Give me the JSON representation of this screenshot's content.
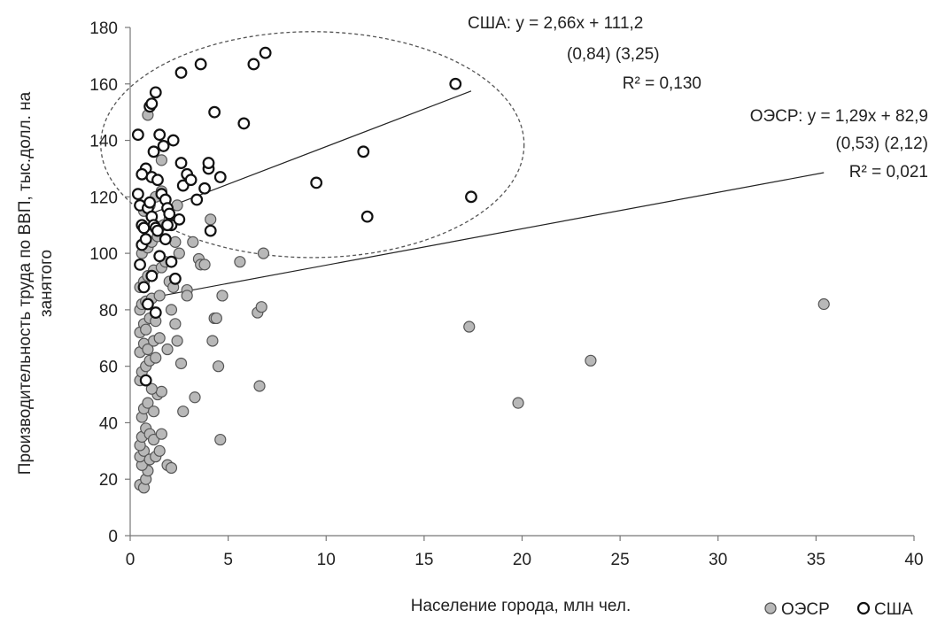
{
  "chart_data": {
    "type": "scatter",
    "xlabel": "Население города, млн чел.",
    "ylabel_lines": [
      "Производительность труда по ВВП, тыс.долл. на",
      "занятого"
    ],
    "xlim": [
      0,
      40
    ],
    "ylim": [
      0,
      180
    ],
    "xticks": [
      "0",
      "5",
      "10",
      "15",
      "20",
      "25",
      "30",
      "35",
      "40"
    ],
    "yticks": [
      "0",
      "20",
      "40",
      "60",
      "80",
      "100",
      "120",
      "140",
      "160",
      "180"
    ],
    "grid": false,
    "legend_position": "bottom-right",
    "series": [
      {
        "name": "ОЭСР",
        "color": "#b8b8b8",
        "marker": "filled-circle",
        "points": [
          [
            0.5,
            18
          ],
          [
            0.7,
            17
          ],
          [
            0.8,
            20
          ],
          [
            0.9,
            23
          ],
          [
            0.6,
            25
          ],
          [
            0.5,
            28
          ],
          [
            0.7,
            30
          ],
          [
            1.0,
            27
          ],
          [
            1.3,
            28
          ],
          [
            1.5,
            30
          ],
          [
            1.9,
            25
          ],
          [
            2.1,
            24
          ],
          [
            0.5,
            32
          ],
          [
            0.6,
            35
          ],
          [
            0.8,
            38
          ],
          [
            1.0,
            36
          ],
          [
            1.2,
            34
          ],
          [
            1.6,
            36
          ],
          [
            0.6,
            42
          ],
          [
            0.7,
            45
          ],
          [
            0.9,
            47
          ],
          [
            1.2,
            44
          ],
          [
            1.4,
            50
          ],
          [
            1.6,
            51
          ],
          [
            1.1,
            52
          ],
          [
            0.5,
            55
          ],
          [
            0.6,
            58
          ],
          [
            0.8,
            60
          ],
          [
            1.0,
            62
          ],
          [
            1.3,
            63
          ],
          [
            0.5,
            65
          ],
          [
            0.7,
            68
          ],
          [
            0.9,
            66
          ],
          [
            1.2,
            69
          ],
          [
            1.5,
            70
          ],
          [
            0.5,
            72
          ],
          [
            0.7,
            75
          ],
          [
            0.8,
            73
          ],
          [
            1.0,
            77
          ],
          [
            1.3,
            76
          ],
          [
            0.5,
            80
          ],
          [
            0.6,
            82
          ],
          [
            0.8,
            83
          ],
          [
            1.1,
            84
          ],
          [
            1.5,
            85
          ],
          [
            0.5,
            88
          ],
          [
            0.7,
            90
          ],
          [
            0.9,
            92
          ],
          [
            1.2,
            94
          ],
          [
            1.6,
            95
          ],
          [
            1.8,
            97
          ],
          [
            2.0,
            90
          ],
          [
            2.2,
            88
          ],
          [
            0.6,
            100
          ],
          [
            0.9,
            102
          ],
          [
            1.1,
            104
          ],
          [
            1.4,
            106
          ],
          [
            1.7,
            110
          ],
          [
            2.0,
            112
          ],
          [
            2.3,
            104
          ],
          [
            0.7,
            115
          ],
          [
            1.0,
            117
          ],
          [
            1.3,
            120
          ],
          [
            1.6,
            122
          ],
          [
            0.9,
            149
          ],
          [
            1.6,
            133
          ],
          [
            2.4,
            117
          ],
          [
            2.5,
            100
          ],
          [
            2.9,
            87
          ],
          [
            2.9,
            85
          ],
          [
            3.2,
            104
          ],
          [
            3.5,
            98
          ],
          [
            3.6,
            96
          ],
          [
            3.8,
            96
          ],
          [
            4.1,
            112
          ],
          [
            4.7,
            85
          ],
          [
            2.1,
            80
          ],
          [
            2.4,
            69
          ],
          [
            2.6,
            61
          ],
          [
            2.3,
            75
          ],
          [
            1.9,
            66
          ],
          [
            4.3,
            77
          ],
          [
            4.4,
            77
          ],
          [
            4.2,
            69
          ],
          [
            4.5,
            60
          ],
          [
            3.3,
            49
          ],
          [
            2.7,
            44
          ],
          [
            4.6,
            34
          ],
          [
            6.5,
            79
          ],
          [
            6.7,
            81
          ],
          [
            6.6,
            53
          ],
          [
            6.8,
            100
          ],
          [
            5.6,
            97
          ],
          [
            17.3,
            74
          ],
          [
            19.8,
            47
          ],
          [
            23.5,
            62
          ],
          [
            35.4,
            82
          ]
        ]
      },
      {
        "name": "США",
        "color": "#ffffff",
        "stroke": "#111111",
        "marker": "open-circle",
        "points": [
          [
            0.4,
            142
          ],
          [
            0.8,
            130
          ],
          [
            0.4,
            121
          ],
          [
            0.6,
            110
          ],
          [
            0.5,
            96
          ],
          [
            0.7,
            88
          ],
          [
            0.8,
            55
          ],
          [
            0.5,
            117
          ],
          [
            0.9,
            116
          ],
          [
            0.6,
            103
          ],
          [
            0.8,
            105
          ],
          [
            1.0,
            118
          ],
          [
            1.1,
            113
          ],
          [
            1.2,
            110
          ],
          [
            1.3,
            109
          ],
          [
            1.1,
            127
          ],
          [
            1.4,
            126
          ],
          [
            1.2,
            136
          ],
          [
            1.0,
            152
          ],
          [
            1.1,
            153
          ],
          [
            1.3,
            157
          ],
          [
            1.5,
            142
          ],
          [
            1.7,
            138
          ],
          [
            1.6,
            121
          ],
          [
            1.8,
            119
          ],
          [
            1.9,
            116
          ],
          [
            2.0,
            114
          ],
          [
            2.1,
            110
          ],
          [
            1.5,
            99
          ],
          [
            1.8,
            105
          ],
          [
            2.1,
            97
          ],
          [
            2.3,
            91
          ],
          [
            1.3,
            79
          ],
          [
            1.1,
            92
          ],
          [
            1.9,
            110
          ],
          [
            2.2,
            140
          ],
          [
            2.6,
            132
          ],
          [
            2.7,
            124
          ],
          [
            2.9,
            128
          ],
          [
            3.1,
            126
          ],
          [
            3.4,
            119
          ],
          [
            3.8,
            123
          ],
          [
            4.0,
            130
          ],
          [
            4.0,
            132
          ],
          [
            4.1,
            108
          ],
          [
            4.6,
            127
          ],
          [
            2.6,
            164
          ],
          [
            3.6,
            167
          ],
          [
            4.3,
            150
          ],
          [
            5.8,
            146
          ],
          [
            6.3,
            167
          ],
          [
            6.9,
            171
          ],
          [
            9.5,
            125
          ],
          [
            11.9,
            136
          ],
          [
            12.1,
            113
          ],
          [
            16.6,
            160
          ],
          [
            17.4,
            120
          ],
          [
            0.6,
            128
          ],
          [
            0.9,
            82
          ],
          [
            1.4,
            108
          ],
          [
            2.5,
            112
          ],
          [
            0.7,
            109
          ]
        ]
      }
    ],
    "trendlines": [
      {
        "series": "США",
        "slope": 2.66,
        "intercept": 111.2,
        "x_range": [
          0.8,
          17.4
        ]
      },
      {
        "series": "ОЭСР",
        "slope": 1.29,
        "intercept": 82.9,
        "x_range": [
          0.5,
          35.4
        ]
      }
    ],
    "ellipse_region": {
      "label": "США",
      "cx_data": 9.3,
      "cy_data": 138.5,
      "rx_data": 10.8,
      "ry_data": 40
    },
    "annotations": {
      "usa": {
        "eq": "США:  y = 2,66x + 111,2",
        "se": "(0,84)    (3,25)",
        "r2": "R² = 0,130"
      },
      "oecd": {
        "eq": "ОЭСР: y = 1,29x + 82,9",
        "se": "(0,53)  (2,12)",
        "r2": "R² = 0,021"
      }
    },
    "legend": [
      {
        "label": "ОЭСР",
        "marker": "filled-circle"
      },
      {
        "label": "США",
        "marker": "open-circle"
      }
    ]
  }
}
